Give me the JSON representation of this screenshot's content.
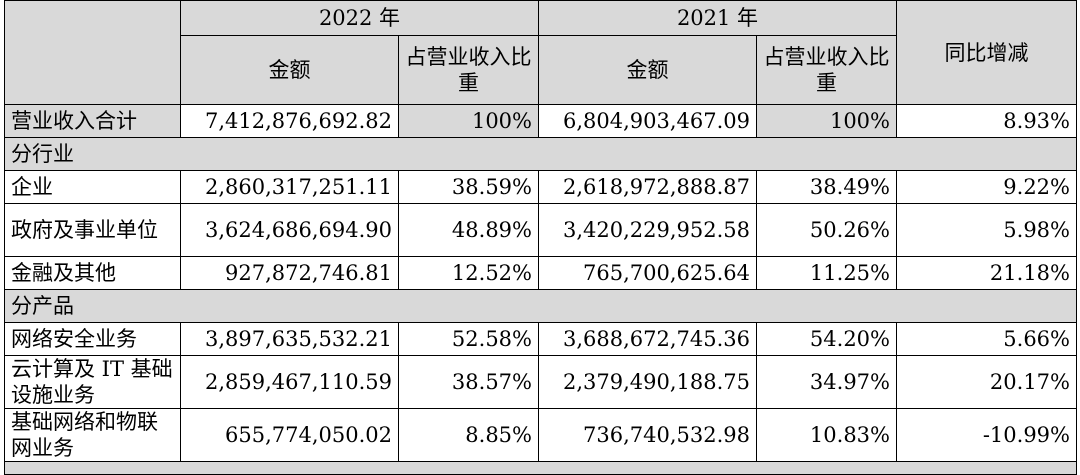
{
  "header": {
    "year_2022": "2022 年",
    "year_2021": "2021 年",
    "amount": "金额",
    "ratio": "占营业收入比重",
    "yoy": "同比增减"
  },
  "total": {
    "label": "营业收入合计",
    "amt2022": "7,412,876,692.82",
    "pct2022": "100%",
    "amt2021": "6,804,903,467.09",
    "pct2021": "100%",
    "yoy": "8.93%"
  },
  "sections": [
    {
      "title": "分行业",
      "rows": [
        {
          "label": "企业",
          "amt2022": "2,860,317,251.11",
          "pct2022": "38.59%",
          "amt2021": "2,618,972,888.87",
          "pct2021": "38.49%",
          "yoy": "9.22%"
        },
        {
          "label": "政府及事业单位",
          "amt2022": "3,624,686,694.90",
          "pct2022": "48.89%",
          "amt2021": "3,420,229,952.58",
          "pct2021": "50.26%",
          "yoy": "5.98%"
        },
        {
          "label": "金融及其他",
          "amt2022": "927,872,746.81",
          "pct2022": "12.52%",
          "amt2021": "765,700,625.64",
          "pct2021": "11.25%",
          "yoy": "21.18%"
        }
      ]
    },
    {
      "title": "分产品",
      "rows": [
        {
          "label": "网络安全业务",
          "amt2022": "3,897,635,532.21",
          "pct2022": "52.58%",
          "amt2021": "3,688,672,745.36",
          "pct2021": "54.20%",
          "yoy": "5.66%"
        },
        {
          "label": "云计算及 IT 基础设施业务",
          "amt2022": "2,859,467,110.59",
          "pct2022": "38.57%",
          "amt2021": "2,379,490,188.75",
          "pct2021": "34.97%",
          "yoy": "20.17%"
        },
        {
          "label": "基础网络和物联网业务",
          "amt2022": "655,774,050.02",
          "pct2022": "8.85%",
          "amt2021": "736,740,532.98",
          "pct2021": "10.83%",
          "yoy": "-10.99%"
        }
      ]
    }
  ]
}
